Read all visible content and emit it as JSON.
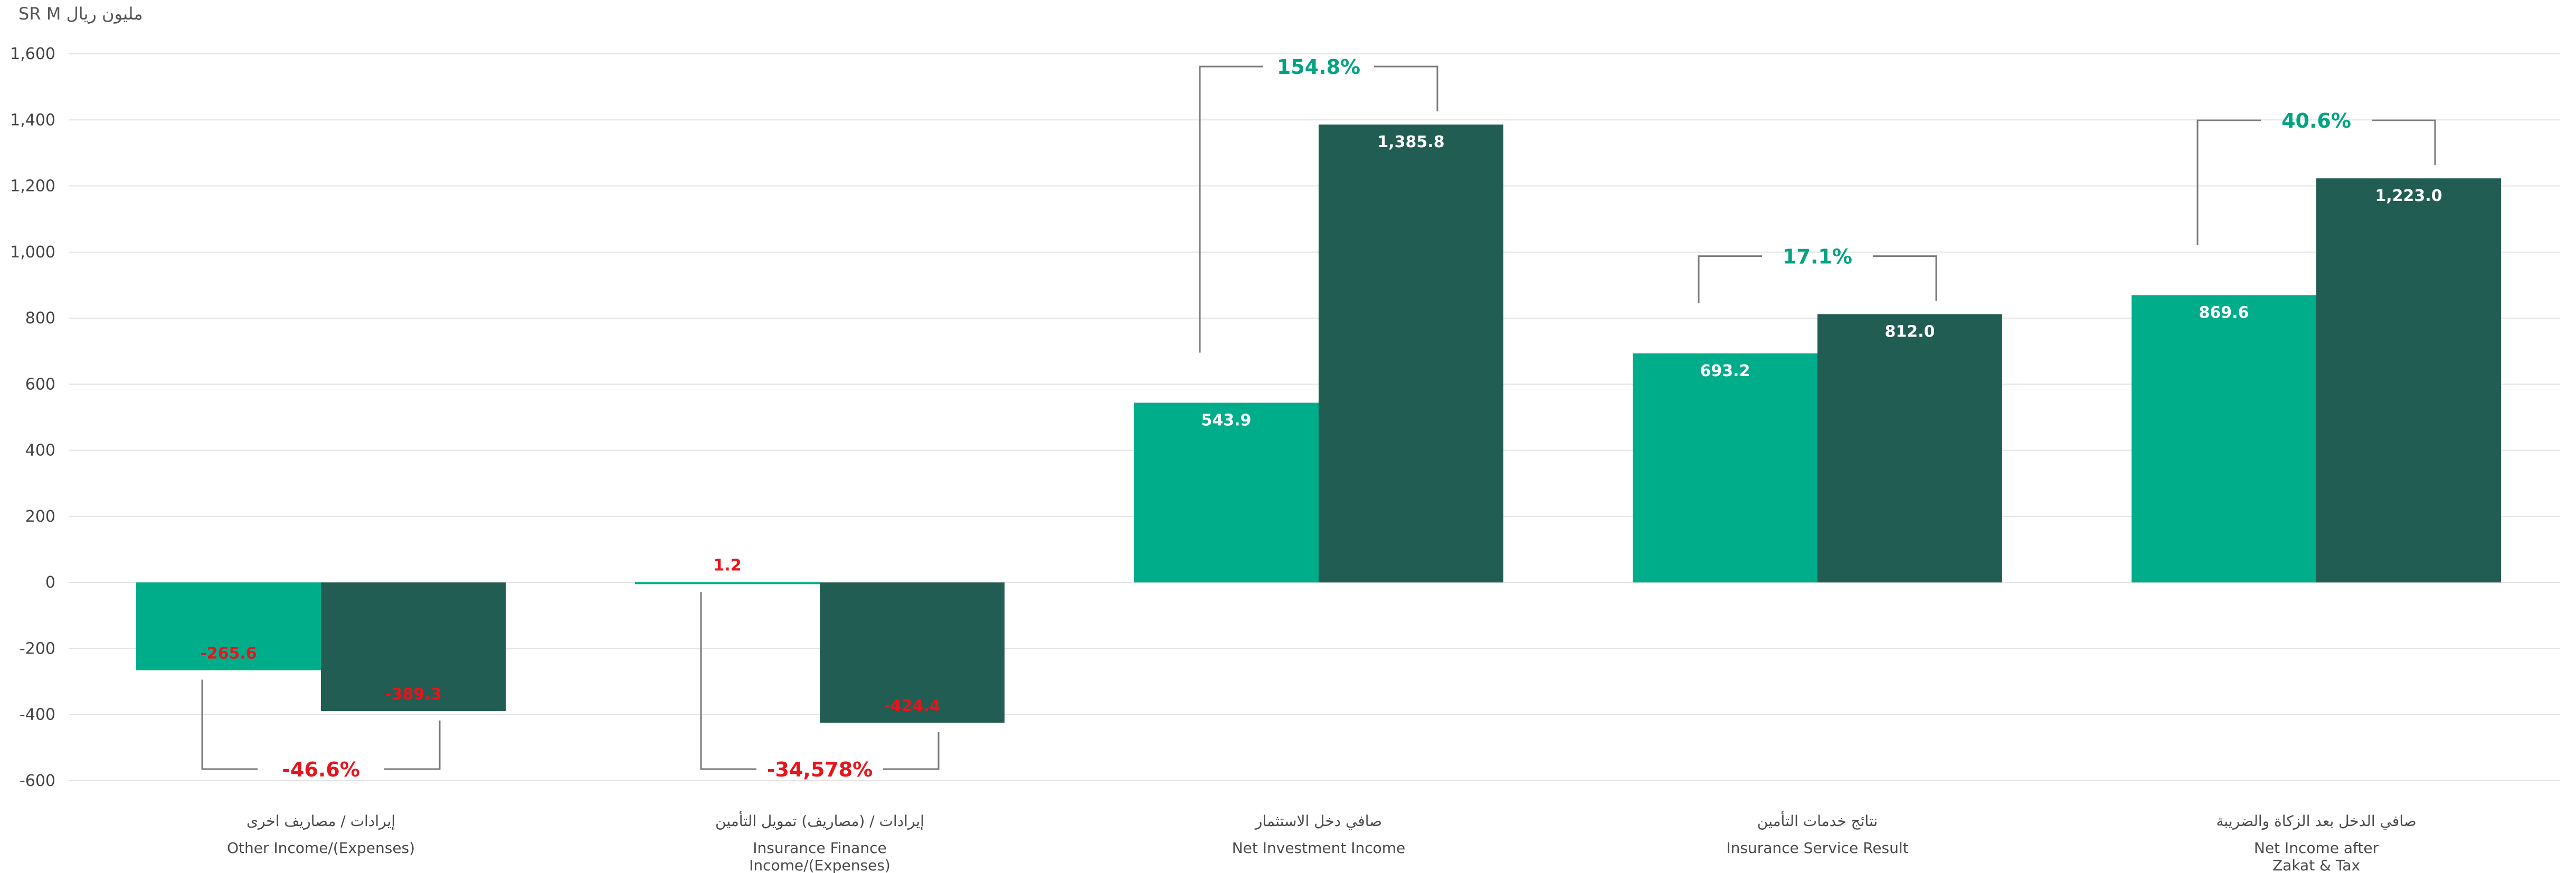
{
  "unit_label": "SR M  مليون ريال",
  "colors": {
    "series_a": "#00AD8A",
    "series_b": "#215D52",
    "negative_text": "#E8141B",
    "percent_positive": "#00A383",
    "percent_negative": "#E8141B",
    "value_on_bar": "#ffffff",
    "grid": "#e3e3e3",
    "bracket": "#7a7a7a"
  },
  "chart_data": {
    "type": "bar",
    "ylim": [
      -600,
      1600
    ],
    "yticks": [
      "-600",
      "-400",
      "-200",
      "0",
      "200",
      "400",
      "600",
      "800",
      "1,000",
      "1,200",
      "1,400",
      "1,600"
    ],
    "grid": true,
    "categories": [
      {
        "ar": "إيرادات / مصاريف اخرى",
        "en": [
          "Other Income/(Expenses)"
        ]
      },
      {
        "ar": "إيرادات / (مصاريف) تمويل التأمين",
        "en": [
          "Insurance Finance",
          "Income/(Expenses)"
        ]
      },
      {
        "ar": "صافي دخل الاستثمار",
        "en": [
          "Net Investment Income"
        ]
      },
      {
        "ar": "نتائج خدمات التأمين",
        "en": [
          "Insurance Service Result"
        ]
      },
      {
        "ar": "صافي الدخل بعد الزكاة والضريبة",
        "en": [
          "Net Income after",
          "Zakat & Tax"
        ]
      }
    ],
    "series": [
      {
        "values": [
          -265.6,
          1.2,
          543.9,
          693.2,
          869.6
        ],
        "labels": [
          "-265.6",
          "1.2",
          "543.9",
          "693.2",
          "869.6"
        ]
      },
      {
        "values": [
          -389.3,
          -424.4,
          1385.8,
          812.0,
          1223.0
        ],
        "labels": [
          "-389.3",
          "-424.4",
          "1,385.8",
          "812.0",
          "1,223.0"
        ]
      }
    ],
    "changes": [
      "-46.6%",
      "-34,578%",
      "154.8%",
      "17.1%",
      "40.6%"
    ]
  }
}
